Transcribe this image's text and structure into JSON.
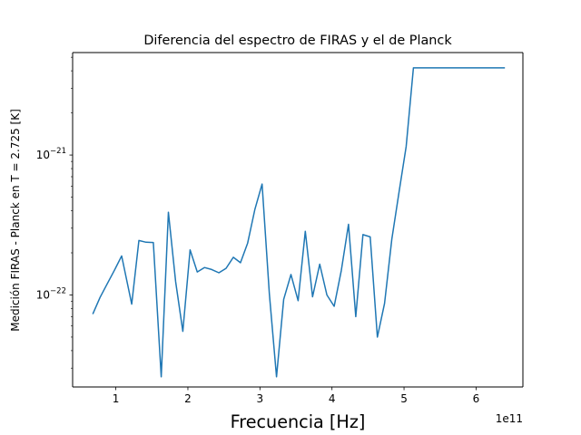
{
  "chart_data": {
    "type": "line",
    "title": "Diferencia del espectro de FIRAS y el de Planck",
    "xlabel": "Frecuencia [Hz]",
    "ylabel": "Medición FIRAS - Planck en T = 2.725 [K]",
    "x_offset_text": "1e11",
    "xscale": "linear",
    "yscale": "log",
    "xlim": [
      40000000000,
      665000000000
    ],
    "ylim": [
      2.2e-23,
      5.4e-21
    ],
    "grid": false,
    "line_color": "#1f77b4",
    "x_ticks": [
      {
        "value": 100000000000,
        "label": "1"
      },
      {
        "value": 200000000000,
        "label": "2"
      },
      {
        "value": 300000000000,
        "label": "3"
      },
      {
        "value": 400000000000,
        "label": "4"
      },
      {
        "value": 500000000000,
        "label": "5"
      },
      {
        "value": 600000000000,
        "label": "6"
      }
    ],
    "y_major_ticks": [
      {
        "value": 1e-22,
        "label": "10",
        "exponent": "−22"
      },
      {
        "value": 1e-21,
        "label": "10",
        "exponent": "−21"
      }
    ],
    "y_minor_ticks": [
      3e-23,
      4e-23,
      5e-23,
      6e-23,
      7e-23,
      8e-23,
      9e-23,
      2e-22,
      3e-22,
      4e-22,
      5e-22,
      6e-22,
      7e-22,
      8e-22,
      9e-22,
      2e-21,
      3e-21,
      4e-21,
      5e-21
    ],
    "series": [
      {
        "x": [
          68000000000,
          78000000000,
          88000000000,
          98000000000,
          108000000000,
          122000000000,
          132000000000,
          142000000000,
          152000000000,
          163000000000,
          173000000000,
          183000000000,
          193000000000,
          203000000000,
          213000000000,
          223000000000,
          233000000000,
          243000000000,
          253000000000,
          263000000000,
          273000000000,
          283000000000,
          293000000000,
          303000000000,
          313000000000,
          323000000000,
          333000000000,
          343000000000,
          353000000000,
          363000000000,
          373000000000,
          383000000000,
          393000000000,
          403000000000,
          413000000000,
          423000000000,
          433000000000,
          443000000000,
          453000000000,
          463000000000,
          473000000000,
          483000000000,
          493000000000,
          503000000000,
          513000000000,
          523000000000,
          533000000000,
          543000000000,
          553000000000,
          563000000000,
          573000000000,
          583000000000,
          593000000000,
          603000000000,
          613000000000,
          623000000000,
          633000000000,
          640000000000
        ],
        "y": [
          7.3e-23,
          9.6e-23,
          1.2e-22,
          1.5e-22,
          1.9e-22,
          8.6e-23,
          2.45e-22,
          2.38e-22,
          2.37e-22,
          2.6e-23,
          3.9e-22,
          1.24e-22,
          5.5e-23,
          2.1e-22,
          1.46e-22,
          1.57e-22,
          1.52e-22,
          1.44e-22,
          1.55e-22,
          1.86e-22,
          1.7e-22,
          2.35e-22,
          4.1e-22,
          6.2e-22,
          1.02e-22,
          2.6e-23,
          9.3e-23,
          1.4e-22,
          9.1e-23,
          2.85e-22,
          9.7e-23,
          1.66e-22,
          1e-22,
          8.3e-23,
          1.5e-22,
          3.2e-22,
          7e-23,
          2.7e-22,
          2.6e-22,
          5e-23,
          8.7e-23,
          2.5e-22,
          5.4e-22,
          1.15e-21,
          4.2e-21,
          4.2e-21,
          4.2e-21,
          4.2e-21,
          4.2e-21,
          4.2e-21,
          4.2e-21,
          4.2e-21,
          4.2e-21,
          4.2e-21,
          4.2e-21,
          4.2e-21,
          4.2e-21,
          4.2e-21
        ]
      }
    ]
  }
}
